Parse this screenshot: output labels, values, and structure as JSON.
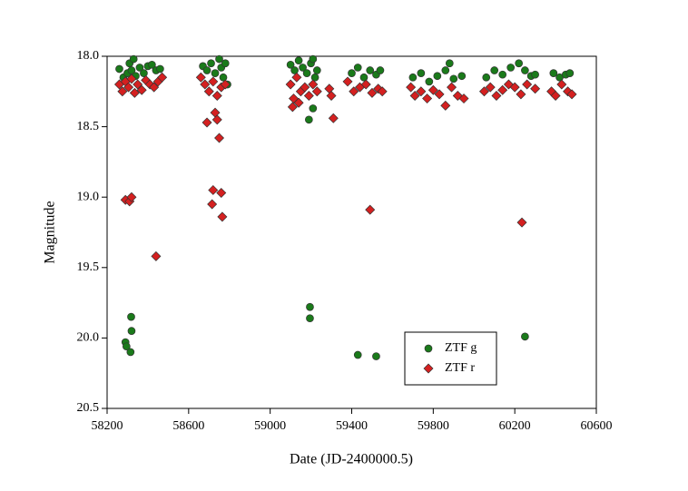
{
  "chart_data": {
    "type": "scatter",
    "xlabel": "Date (JD-2400000.5)",
    "ylabel": "Magnitude",
    "xlim": [
      58200,
      60600
    ],
    "xticks": [
      58200,
      58600,
      59000,
      59400,
      59800,
      60200,
      60600
    ],
    "ylim": [
      20.5,
      18.0
    ],
    "yticks": [
      {
        "value": 18.0,
        "label": "18.0"
      },
      18.5,
      {
        "value": 19.0,
        "label": "19.0"
      },
      19.5,
      {
        "value": 20.0,
        "label": "20.0"
      },
      20.5
    ],
    "series": [
      {
        "name": "ZTF g",
        "color": "#1a7a1a",
        "marker": "circle",
        "x": [
          58260,
          58280,
          58300,
          58310,
          58320,
          58330,
          58340,
          58360,
          58380,
          58400,
          58420,
          58440,
          58460,
          58290,
          58295,
          58315,
          58320,
          58318,
          58670,
          58690,
          58710,
          58730,
          58750,
          58760,
          58770,
          58780,
          58790,
          59100,
          59120,
          59140,
          59160,
          59180,
          59200,
          59210,
          59220,
          59230,
          59190,
          59210,
          59195,
          59195,
          59400,
          59430,
          59460,
          59490,
          59520,
          59540,
          59430,
          59520,
          59700,
          59740,
          59780,
          59820,
          59860,
          59880,
          59900,
          59940,
          60060,
          60100,
          60140,
          60180,
          60220,
          60250,
          60280,
          60300,
          60250,
          60390,
          60420,
          60450,
          60470
        ],
        "values": [
          18.09,
          18.15,
          18.12,
          18.05,
          18.1,
          18.02,
          18.14,
          18.08,
          18.12,
          18.07,
          18.06,
          18.1,
          18.09,
          20.03,
          20.06,
          20.1,
          19.95,
          19.85,
          18.07,
          18.1,
          18.05,
          18.12,
          18.02,
          18.08,
          18.15,
          18.05,
          18.2,
          18.06,
          18.1,
          18.03,
          18.08,
          18.12,
          18.05,
          18.02,
          18.15,
          18.1,
          18.45,
          18.37,
          19.78,
          19.86,
          18.12,
          18.08,
          18.15,
          18.1,
          18.13,
          18.1,
          20.12,
          20.13,
          18.15,
          18.12,
          18.18,
          18.14,
          18.1,
          18.05,
          18.16,
          18.14,
          18.15,
          18.1,
          18.13,
          18.08,
          18.05,
          18.1,
          18.14,
          18.13,
          19.99,
          18.12,
          18.15,
          18.13,
          18.12
        ]
      },
      {
        "name": "ZTF r",
        "color": "#d42020",
        "marker": "diamond",
        "x": [
          58260,
          58275,
          58290,
          58305,
          58320,
          58335,
          58350,
          58370,
          58390,
          58410,
          58430,
          58450,
          58470,
          58290,
          58310,
          58320,
          58440,
          58660,
          58680,
          58700,
          58720,
          58740,
          58760,
          58780,
          58690,
          58730,
          58740,
          58750,
          58720,
          58715,
          58760,
          58765,
          59100,
          59115,
          59130,
          59150,
          59170,
          59190,
          59210,
          59230,
          59110,
          59140,
          59290,
          59300,
          59310,
          59380,
          59410,
          59440,
          59470,
          59500,
          59530,
          59550,
          59490,
          59690,
          59710,
          59740,
          59770,
          59800,
          59830,
          59860,
          59890,
          59920,
          59950,
          60050,
          60080,
          60110,
          60140,
          60170,
          60200,
          60230,
          60260,
          60300,
          60235,
          60380,
          60400,
          60430,
          60460,
          60480
        ],
        "values": [
          18.2,
          18.25,
          18.18,
          18.22,
          18.16,
          18.26,
          18.2,
          18.24,
          18.17,
          18.2,
          18.22,
          18.18,
          18.15,
          19.02,
          19.03,
          19.0,
          19.42,
          18.15,
          18.2,
          18.25,
          18.18,
          18.28,
          18.22,
          18.2,
          18.47,
          18.4,
          18.45,
          18.58,
          18.95,
          19.05,
          18.97,
          19.14,
          18.2,
          18.3,
          18.15,
          18.25,
          18.22,
          18.28,
          18.2,
          18.25,
          18.36,
          18.33,
          18.23,
          18.28,
          18.44,
          18.18,
          18.25,
          18.22,
          18.2,
          18.26,
          18.23,
          18.25,
          19.09,
          18.22,
          18.28,
          18.25,
          18.3,
          18.24,
          18.27,
          18.35,
          18.22,
          18.28,
          18.3,
          18.25,
          18.22,
          18.28,
          18.24,
          18.2,
          18.22,
          18.27,
          18.2,
          18.23,
          19.18,
          18.25,
          18.28,
          18.2,
          18.25,
          18.27
        ]
      }
    ]
  }
}
